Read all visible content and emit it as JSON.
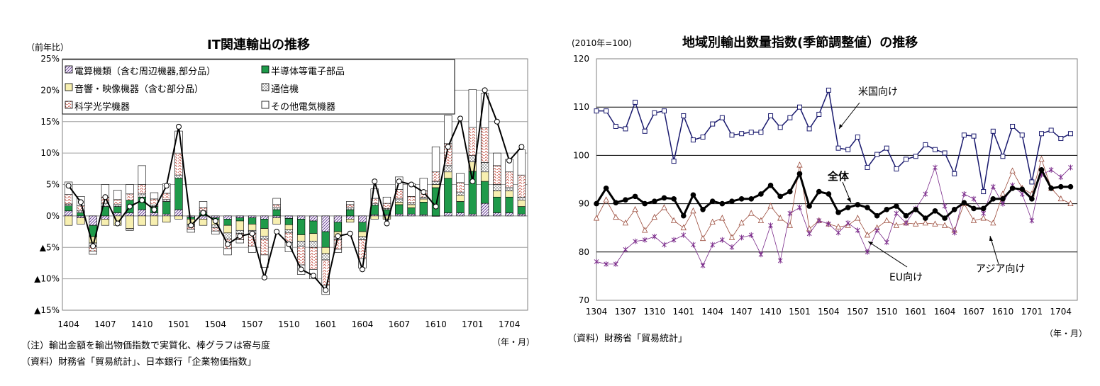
{
  "left": {
    "title": "IT関連輸出の推移",
    "unit_label": "（前年比）",
    "yticks": [
      "25%",
      "20%",
      "15%",
      "10%",
      "5%",
      "0%",
      "▲5%",
      "▲10%",
      "▲15%"
    ],
    "xticks": [
      "1404",
      "1407",
      "1410",
      "1501",
      "1504",
      "1507",
      "1510",
      "1601",
      "1604",
      "1607",
      "1610",
      "1701",
      "1704"
    ],
    "xunit": "（年・月）",
    "note1": "（注）輸出金額を輸出物価指数で実質化、棒グラフは寄与度",
    "note2": "（資料）財務省「貿易統計」、日本銀行「企業物価指数」",
    "legend": [
      "電算機類（含む周辺機器,部分品）",
      "半導体等電子部品",
      "音響・映像機器（含む部分品）",
      "通信機",
      "科学光学機器",
      "その他電気機器"
    ]
  },
  "right": {
    "title": "地域別輸出数量指数(季節調整値）の推移",
    "unit_label": "(2010年=100)",
    "yticks": [
      "120",
      "110",
      "100",
      "90",
      "80",
      "70"
    ],
    "xticks": [
      "1304",
      "1307",
      "1310",
      "1401",
      "1404",
      "1407",
      "1410",
      "1501",
      "1504",
      "1507",
      "1510",
      "1601",
      "1604",
      "1607",
      "1610",
      "1701",
      "1704"
    ],
    "xunit": "（年・月）",
    "note": "（資料）財務省「貿易統計」",
    "labels": {
      "us": "米国向け",
      "total": "全体",
      "eu": "EU向け",
      "asia": "アジア向け"
    }
  },
  "colors": {
    "green": "#1f9a4a",
    "navy": "#1a1a6e",
    "purple": "#7a2a8a",
    "brown": "#9a4a3a",
    "yellow": "#f7efb0",
    "red": "#c0392b"
  },
  "chart_data": [
    {
      "type": "bar",
      "title": "IT関連輸出の推移",
      "ylabel": "（前年比）",
      "ylim": [
        -15,
        25
      ],
      "x": [
        "1404",
        "1405",
        "1406",
        "1407",
        "1408",
        "1409",
        "1410",
        "1411",
        "1412",
        "1501",
        "1502",
        "1503",
        "1504",
        "1505",
        "1506",
        "1507",
        "1508",
        "1509",
        "1510",
        "1511",
        "1512",
        "1601",
        "1602",
        "1603",
        "1604",
        "1605",
        "1606",
        "1607",
        "1608",
        "1609",
        "1610",
        "1611",
        "1612",
        "1701",
        "1702",
        "1703",
        "1704",
        "1705"
      ],
      "series": [
        {
          "name": "電算機類（含む周辺機器,部分品）",
          "values": [
            0.8,
            -0.3,
            -1.5,
            -0.5,
            0.5,
            0.5,
            1.0,
            0.5,
            0.3,
            1.0,
            -0.2,
            -0.5,
            -0.3,
            -0.5,
            -0.3,
            -0.3,
            -0.5,
            -0.3,
            -0.4,
            -0.5,
            -0.8,
            -2.5,
            -1.0,
            -0.5,
            -1.0,
            0.2,
            0.2,
            0.3,
            0.3,
            0.2,
            0.0,
            0.5,
            0.5,
            0.3,
            2.0,
            0.5,
            0.5,
            0.3
          ]
        },
        {
          "name": "半導体等電子部品",
          "values": [
            0.8,
            0.5,
            -1.8,
            1.5,
            1.0,
            2.0,
            2.0,
            1.0,
            2.0,
            5.0,
            -0.3,
            0.5,
            -0.3,
            -1.0,
            -0.5,
            -1.0,
            -1.5,
            1.0,
            -1.0,
            -2.5,
            -2.0,
            -2.5,
            -1.5,
            1.0,
            -1.5,
            1.5,
            0.8,
            1.5,
            1.0,
            2.0,
            4.5,
            5.5,
            1.8,
            6.8,
            3.5,
            2.5,
            2.5,
            1.2
          ]
        },
        {
          "name": "音響・映像機器（含む部分品）",
          "values": [
            -1.5,
            -1.0,
            -1.0,
            -1.0,
            -1.5,
            -2.0,
            -1.5,
            -1.5,
            -1.0,
            -0.5,
            -0.8,
            -1.0,
            -0.8,
            -1.2,
            -1.5,
            -1.0,
            -1.2,
            -1.0,
            -0.8,
            -1.0,
            -1.2,
            -1.0,
            -0.8,
            -0.5,
            -0.8,
            -0.5,
            -0.5,
            0.4,
            0.5,
            0.5,
            0.5,
            1.0,
            1.0,
            1.5,
            1.5,
            1.0,
            1.0,
            1.0
          ]
        },
        {
          "name": "通信機",
          "values": [
            0.3,
            0.3,
            -0.5,
            0.5,
            0.3,
            -0.3,
            0.5,
            0.2,
            0.3,
            0.5,
            -0.3,
            0.3,
            -0.5,
            -1.0,
            -0.5,
            -0.5,
            -0.5,
            0.3,
            -0.5,
            -0.8,
            -1.0,
            -1.0,
            -0.5,
            0.3,
            -0.5,
            0.3,
            0.2,
            0.5,
            0.3,
            0.3,
            0.5,
            1.0,
            0.5,
            1.0,
            1.5,
            1.0,
            0.5,
            0.5
          ]
        },
        {
          "name": "科学光学機器",
          "values": [
            1.5,
            0.8,
            -0.8,
            1.0,
            0.8,
            1.0,
            1.5,
            1.0,
            1.0,
            3.5,
            -0.5,
            0.5,
            -0.5,
            -1.5,
            -1.0,
            -2.0,
            -2.5,
            0.5,
            -1.5,
            -3.0,
            -3.5,
            -4.0,
            -1.5,
            0.5,
            -3.0,
            0.8,
            0.8,
            1.5,
            1.0,
            1.0,
            1.5,
            3.5,
            1.5,
            4.5,
            5.5,
            3.0,
            2.5,
            3.5
          ]
        },
        {
          "name": "その他電気機器",
          "values": [
            2.0,
            1.5,
            -0.5,
            2.0,
            1.5,
            1.5,
            3.0,
            1.0,
            1.5,
            3.5,
            -0.5,
            1.0,
            -0.5,
            -1.0,
            -0.5,
            -1.0,
            -2.0,
            1.0,
            -1.5,
            -1.5,
            -1.5,
            -1.5,
            -0.5,
            0.5,
            -1.5,
            1.5,
            1.0,
            2.0,
            2.0,
            2.0,
            4.0,
            4.5,
            1.5,
            6.0,
            5.5,
            2.0,
            2.0,
            4.0
          ]
        }
      ],
      "total": {
        "values": [
          4.8,
          2.2,
          -4.8,
          3.0,
          -1.2,
          1.5,
          2.5,
          1.0,
          4.8,
          14.2,
          -1.5,
          0.5,
          -0.8,
          -4.5,
          -3.2,
          -2.8,
          -9.8,
          -2.5,
          -4.5,
          -8.5,
          -9.5,
          -11.8,
          -3.2,
          -2.8,
          -8.5,
          5.5,
          -1.2,
          5.5,
          5.0,
          3.8,
          1.5,
          11.0,
          15.5,
          5.5,
          20.0,
          15.0,
          8.8,
          11.0
        ]
      }
    },
    {
      "type": "line",
      "title": "地域別輸出数量指数(季節調整値）の推移",
      "ylabel": "(2010年=100)",
      "ylim": [
        70,
        120
      ],
      "x": [
        "1304",
        "1305",
        "1306",
        "1307",
        "1308",
        "1309",
        "1310",
        "1311",
        "1312",
        "1401",
        "1402",
        "1403",
        "1404",
        "1405",
        "1406",
        "1407",
        "1408",
        "1409",
        "1410",
        "1411",
        "1412",
        "1501",
        "1502",
        "1503",
        "1504",
        "1505",
        "1506",
        "1507",
        "1508",
        "1509",
        "1510",
        "1511",
        "1512",
        "1601",
        "1602",
        "1603",
        "1604",
        "1605",
        "1606",
        "1607",
        "1608",
        "1609",
        "1610",
        "1611",
        "1612",
        "1701",
        "1702",
        "1703",
        "1704",
        "1705"
      ],
      "series": [
        {
          "name": "米国向け",
          "values": [
            109.2,
            109.2,
            106.0,
            105.5,
            111.0,
            105.0,
            108.8,
            109.2,
            98.8,
            108.2,
            103.2,
            103.8,
            106.5,
            107.8,
            104.2,
            104.5,
            104.8,
            104.8,
            108.2,
            105.8,
            107.8,
            110.0,
            105.5,
            108.5,
            113.5,
            101.5,
            101.2,
            103.8,
            97.5,
            100.2,
            101.5,
            97.2,
            99.2,
            99.8,
            102.2,
            101.2,
            100.5,
            96.2,
            104.2,
            104.0,
            92.5,
            105.0,
            99.8,
            106.0,
            104.2,
            94.5,
            104.5,
            105.2,
            103.5,
            104.5
          ]
        },
        {
          "name": "全体",
          "values": [
            90.0,
            93.2,
            90.2,
            90.8,
            91.5,
            90.0,
            90.5,
            91.2,
            91.0,
            87.5,
            91.8,
            88.8,
            90.5,
            90.0,
            90.5,
            91.0,
            91.0,
            92.0,
            93.8,
            91.5,
            92.5,
            96.2,
            89.5,
            92.5,
            92.0,
            88.2,
            89.2,
            89.8,
            89.2,
            87.5,
            88.8,
            89.5,
            87.5,
            88.8,
            87.0,
            88.5,
            87.0,
            88.8,
            90.2,
            89.0,
            89.0,
            91.0,
            91.0,
            93.2,
            93.0,
            91.0,
            97.0,
            93.2,
            93.5,
            93.5
          ]
        },
        {
          "name": "アジア向け",
          "values": [
            87.0,
            90.8,
            87.2,
            86.0,
            88.8,
            84.5,
            87.2,
            89.2,
            86.5,
            85.0,
            88.5,
            82.8,
            86.2,
            87.0,
            83.0,
            86.0,
            88.0,
            86.5,
            89.5,
            87.0,
            85.5,
            98.0,
            84.8,
            86.5,
            85.8,
            85.2,
            85.5,
            87.0,
            83.5,
            85.0,
            86.5,
            85.5,
            86.0,
            85.8,
            86.0,
            85.8,
            85.5,
            84.5,
            90.0,
            86.5,
            87.0,
            86.0,
            92.0,
            96.8,
            93.2,
            92.0,
            99.2,
            93.2,
            91.0,
            90.0
          ]
        },
        {
          "name": "EU向け",
          "values": [
            78.0,
            77.5,
            77.5,
            80.5,
            82.2,
            82.5,
            83.2,
            81.5,
            82.5,
            83.5,
            81.5,
            77.2,
            81.5,
            82.5,
            81.0,
            83.0,
            83.5,
            79.5,
            85.5,
            78.2,
            88.0,
            89.2,
            83.8,
            86.5,
            85.8,
            84.0,
            86.0,
            84.5,
            80.0,
            84.5,
            82.0,
            88.0,
            86.0,
            89.0,
            92.0,
            97.5,
            89.5,
            84.0,
            92.0,
            91.0,
            88.0,
            93.5,
            90.0,
            93.8,
            92.0,
            86.5,
            96.0,
            97.0,
            95.5,
            97.5
          ]
        }
      ]
    }
  ]
}
